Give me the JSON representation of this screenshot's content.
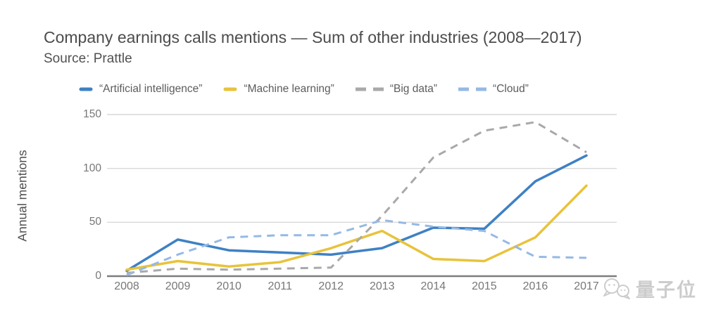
{
  "chart_data": {
    "type": "line",
    "title": "Company earnings calls mentions — Sum of other industries (2008—2017)",
    "subtitle": "Source: Prattle",
    "xlabel": "",
    "ylabel": "Annual mentions",
    "x": [
      "2008",
      "2009",
      "2010",
      "2011",
      "2012",
      "2013",
      "2014",
      "2015",
      "2016",
      "2017"
    ],
    "yticks": [
      0,
      50,
      100,
      150
    ],
    "ylim": [
      0,
      150
    ],
    "grid": true,
    "legend_position": "top",
    "series": [
      {
        "name": "“Artificial intelligence”",
        "color": "#3e81c3",
        "style": "solid",
        "values": [
          5,
          34,
          24,
          22,
          20,
          26,
          45,
          44,
          88,
          112
        ]
      },
      {
        "name": "“Machine learning”",
        "color": "#e8c33b",
        "style": "solid",
        "values": [
          6,
          14,
          9,
          13,
          26,
          42,
          16,
          14,
          36,
          84
        ]
      },
      {
        "name": "“Big data”",
        "color": "#a9a9a9",
        "style": "dashed",
        "values": [
          3,
          7,
          6,
          7,
          8,
          56,
          110,
          135,
          143,
          115
        ]
      },
      {
        "name": "“Cloud”",
        "color": "#95b9e5",
        "style": "dashed",
        "values": [
          1,
          20,
          36,
          38,
          38,
          52,
          46,
          42,
          18,
          17
        ]
      }
    ]
  },
  "watermark": {
    "text": "量子位",
    "icon": "chat-bubbles-icon"
  }
}
